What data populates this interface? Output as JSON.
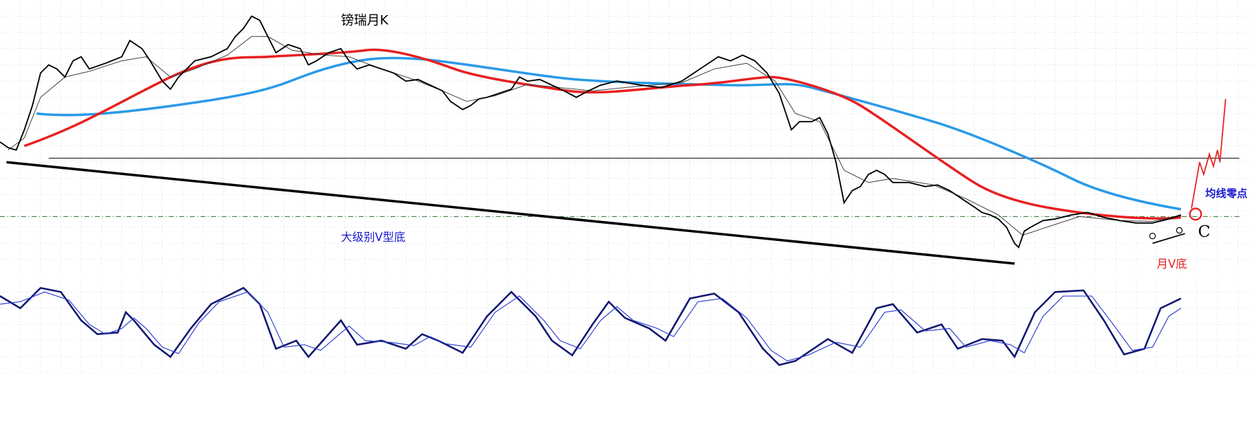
{
  "title": "镑瑞月K",
  "annotations": {
    "big_v_bottom": "大级别V型底",
    "ma_zero_point": "均线零点",
    "point_c": "C",
    "monthly_v_bottom": "月V底"
  }
}
